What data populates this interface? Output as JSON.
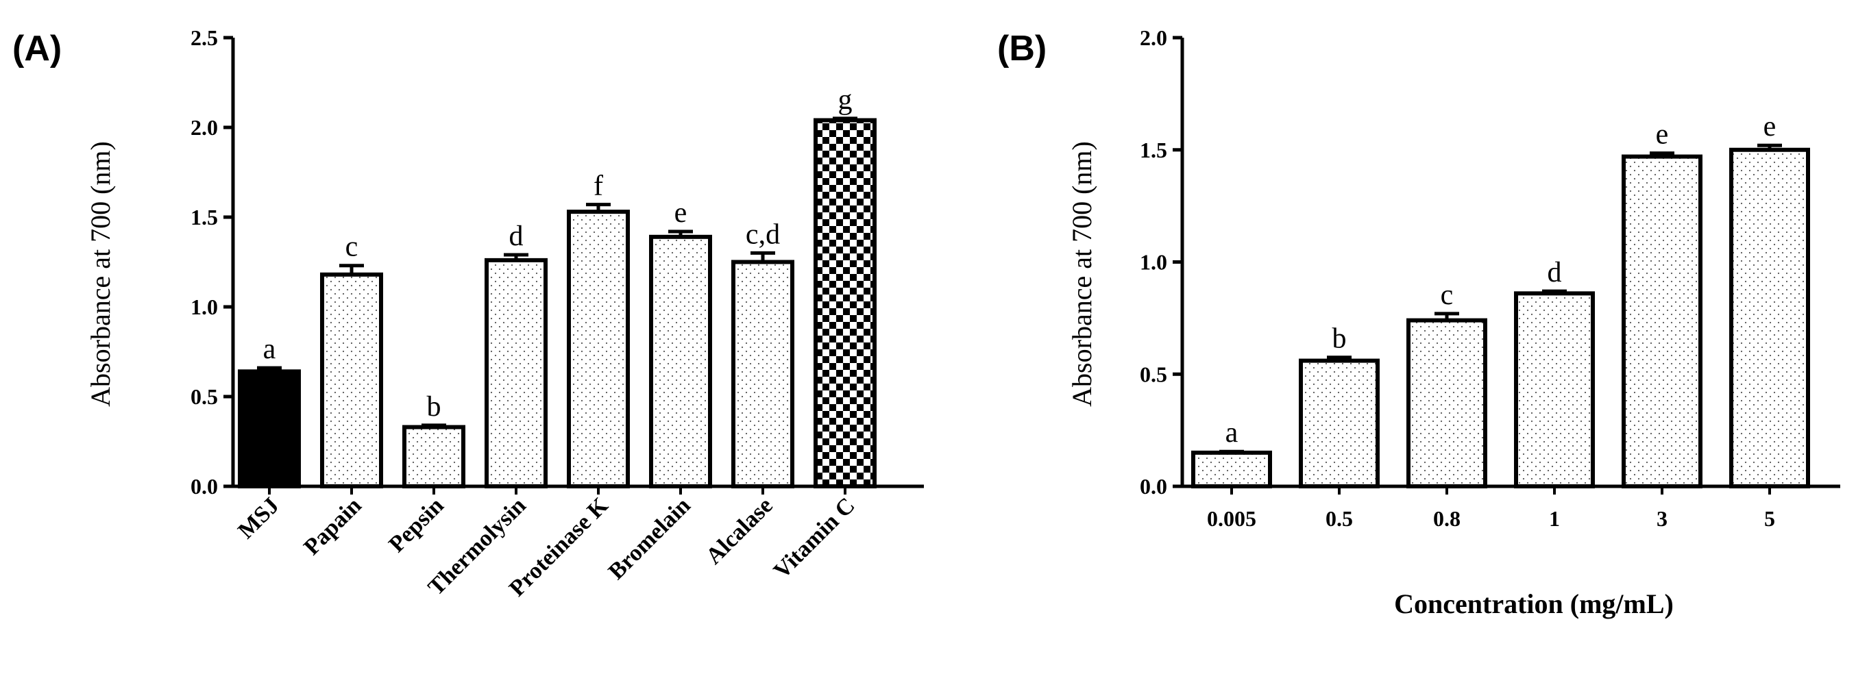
{
  "chart_data": [
    {
      "panel": "(A)",
      "type": "bar",
      "ylabel": "Absorbance at 700 (nm)",
      "xlabel": "",
      "ylim": [
        0,
        2.5
      ],
      "yticks": [
        "0.0",
        "0.5",
        "1.0",
        "1.5",
        "2.0",
        "2.5"
      ],
      "categories": [
        "MSJ",
        "Papain",
        "Pepsin",
        "Thermolysin",
        "Proteinase K",
        "Bromelain",
        "Alcalase",
        "Vitamin C"
      ],
      "values": [
        0.64,
        1.18,
        0.33,
        1.26,
        1.53,
        1.39,
        1.25,
        2.04
      ],
      "errors": [
        0.02,
        0.05,
        0.01,
        0.03,
        0.04,
        0.03,
        0.05,
        0.01
      ],
      "significance": [
        "a",
        "c",
        "b",
        "d",
        "f",
        "e",
        "c,d",
        "g"
      ],
      "fills": [
        "solid",
        "dots",
        "dots",
        "dots",
        "dots",
        "dots",
        "dots",
        "checker"
      ]
    },
    {
      "panel": "(B)",
      "type": "bar",
      "ylabel": "Absorbance at 700 (nm)",
      "xlabel": "Concentration (mg/mL)",
      "ylim": [
        0,
        2.0
      ],
      "yticks": [
        "0.0",
        "0.5",
        "1.0",
        "1.5",
        "2.0"
      ],
      "categories": [
        "0.005",
        "0.5",
        "0.8",
        "1",
        "3",
        "5"
      ],
      "values": [
        0.15,
        0.56,
        0.74,
        0.86,
        1.47,
        1.5
      ],
      "errors": [
        0.005,
        0.015,
        0.03,
        0.01,
        0.015,
        0.02
      ],
      "significance": [
        "a",
        "b",
        "c",
        "d",
        "e",
        "e"
      ],
      "fills": [
        "dots",
        "dots",
        "dots",
        "dots",
        "dots",
        "dots"
      ]
    }
  ]
}
